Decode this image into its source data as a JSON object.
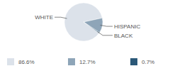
{
  "chart_data": {
    "type": "pie",
    "categories": [
      "WHITE",
      "HISPANIC",
      "BLACK"
    ],
    "values": [
      86.6,
      12.7,
      0.7
    ],
    "value_labels": [
      "86.6%",
      "12.7%",
      "0.7%"
    ],
    "colors": [
      "#dce2ea",
      "#8ea5b8",
      "#2b5878"
    ],
    "legend": "bottom"
  }
}
